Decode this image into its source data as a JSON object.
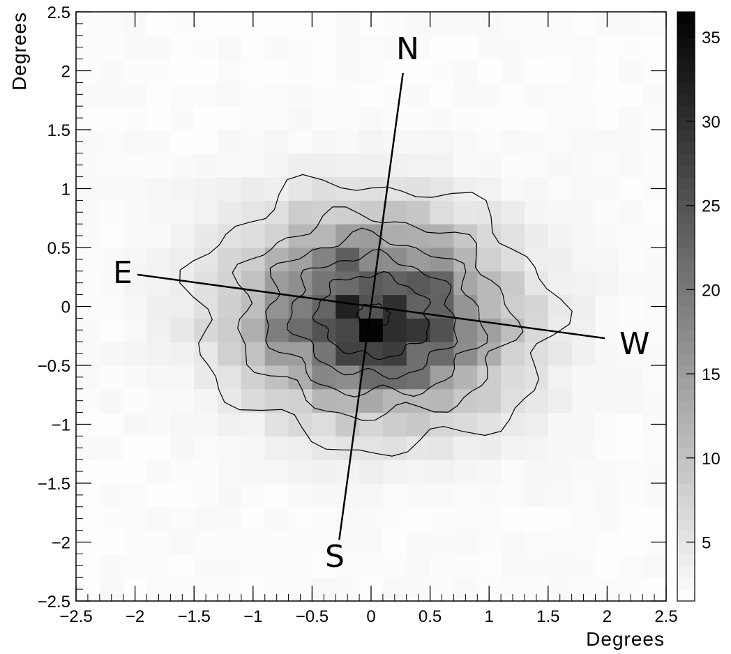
{
  "chart_data": {
    "type": "heatmap",
    "title": "",
    "xlabel": "Degrees",
    "ylabel": "Degrees",
    "xlim": [
      -2.5,
      2.5
    ],
    "ylim": [
      -2.5,
      2.5
    ],
    "x_ticks": [
      "-2.5",
      "-2",
      "-1.5",
      "-1",
      "-0.5",
      "0",
      "0.5",
      "1",
      "1.5",
      "2",
      "2.5"
    ],
    "y_ticks": [
      "-2.5",
      "-2",
      "-1.5",
      "-1",
      "-0.5",
      "0",
      "0.5",
      "1",
      "1.5",
      "2",
      "2.5"
    ],
    "colorbar": {
      "min": 1.5,
      "max": 36.5,
      "ticks": [
        "5",
        "10",
        "15",
        "20",
        "25",
        "30",
        "35"
      ],
      "scheme": "grayscale"
    },
    "distribution": {
      "peak_value": 36,
      "peak_x": 0.0,
      "peak_y": -0.2,
      "major_axis_tilt_deg": -6,
      "description_levels": [
        5,
        10,
        15,
        20,
        25,
        30
      ]
    },
    "contour_levels": [
      5,
      10,
      15,
      20,
      25,
      30
    ],
    "compass": [
      {
        "label": "N",
        "x": 0.27,
        "y": 1.98
      },
      {
        "label": "S",
        "x": -0.27,
        "y": -1.98
      },
      {
        "label": "E",
        "x": -1.98,
        "y": 0.27
      },
      {
        "label": "W",
        "x": 1.98,
        "y": -0.27
      }
    ],
    "grid": false
  }
}
